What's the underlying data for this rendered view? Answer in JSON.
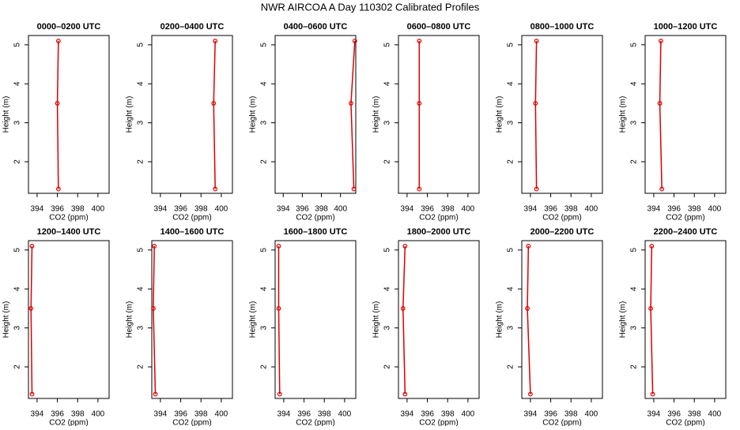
{
  "title": "NWR AIRCOA A  Day 110302  Calibrated Profiles",
  "chart_data": [
    {
      "type": "line",
      "title": "0000–0200 UTC",
      "xlabel": "CO2 (ppm)",
      "ylabel": "Height (m)",
      "color": "#dd0000",
      "x": [
        396.1,
        396.0,
        396.1
      ],
      "values": [
        1.3,
        3.5,
        5.1
      ],
      "xlim": [
        393.15,
        401.1
      ],
      "ylim": [
        1.19,
        5.24
      ],
      "xticks": [
        394,
        396,
        398,
        400
      ],
      "yticks": [
        2,
        3,
        4,
        5
      ]
    },
    {
      "type": "line",
      "title": "0200–0400 UTC",
      "xlabel": "CO2 (ppm)",
      "ylabel": "Height (m)",
      "color": "#dd0000",
      "x": [
        399.4,
        399.25,
        399.4
      ],
      "values": [
        1.3,
        3.5,
        5.1
      ],
      "xlim": [
        393.15,
        401.1
      ],
      "ylim": [
        1.19,
        5.24
      ],
      "xticks": [
        394,
        396,
        398,
        400
      ],
      "yticks": [
        2,
        3,
        4,
        5
      ]
    },
    {
      "type": "line",
      "title": "0400–0600 UTC",
      "xlabel": "CO2 (ppm)",
      "ylabel": "Height (m)",
      "color": "#dd0000",
      "x": [
        401.4,
        401.1,
        401.5
      ],
      "values": [
        1.3,
        3.5,
        5.1
      ],
      "xlim": [
        393.15,
        401.6
      ],
      "ylim": [
        1.19,
        5.24
      ],
      "xticks": [
        394,
        396,
        398,
        400
      ],
      "yticks": [
        2,
        3,
        4,
        5
      ]
    },
    {
      "type": "line",
      "title": "0600–0800 UTC",
      "xlabel": "CO2 (ppm)",
      "ylabel": "Height (m)",
      "color": "#dd0000",
      "x": [
        395.2,
        395.2,
        395.2
      ],
      "values": [
        1.3,
        3.5,
        5.1
      ],
      "xlim": [
        393.15,
        401.1
      ],
      "ylim": [
        1.19,
        5.24
      ],
      "xticks": [
        394,
        396,
        398,
        400
      ],
      "yticks": [
        2,
        3,
        4,
        5
      ]
    },
    {
      "type": "line",
      "title": "0800–1000 UTC",
      "xlabel": "CO2 (ppm)",
      "ylabel": "Height (m)",
      "color": "#dd0000",
      "x": [
        394.6,
        394.5,
        394.6
      ],
      "values": [
        1.3,
        3.5,
        5.1
      ],
      "xlim": [
        393.15,
        401.1
      ],
      "ylim": [
        1.19,
        5.24
      ],
      "xticks": [
        394,
        396,
        398,
        400
      ],
      "yticks": [
        2,
        3,
        4,
        5
      ]
    },
    {
      "type": "line",
      "title": "1000–1200 UTC",
      "xlabel": "CO2 (ppm)",
      "ylabel": "Height (m)",
      "color": "#dd0000",
      "x": [
        394.8,
        394.6,
        394.7
      ],
      "values": [
        1.3,
        3.5,
        5.1
      ],
      "xlim": [
        393.15,
        401.1
      ],
      "ylim": [
        1.19,
        5.24
      ],
      "xticks": [
        394,
        396,
        398,
        400
      ],
      "yticks": [
        2,
        3,
        4,
        5
      ]
    },
    {
      "type": "line",
      "title": "1200–1400 UTC",
      "xlabel": "CO2 (ppm)",
      "ylabel": "Height (m)",
      "color": "#dd0000",
      "x": [
        393.5,
        393.4,
        393.5
      ],
      "values": [
        1.3,
        3.5,
        5.1
      ],
      "xlim": [
        393.15,
        401.1
      ],
      "ylim": [
        1.19,
        5.24
      ],
      "xticks": [
        394,
        396,
        398,
        400
      ],
      "yticks": [
        2,
        3,
        4,
        5
      ]
    },
    {
      "type": "line",
      "title": "1400–1600 UTC",
      "xlabel": "CO2 (ppm)",
      "ylabel": "Height (m)",
      "color": "#dd0000",
      "x": [
        393.5,
        393.3,
        393.4
      ],
      "values": [
        1.3,
        3.5,
        5.1
      ],
      "xlim": [
        393.15,
        401.1
      ],
      "ylim": [
        1.19,
        5.24
      ],
      "xticks": [
        394,
        396,
        398,
        400
      ],
      "yticks": [
        2,
        3,
        4,
        5
      ]
    },
    {
      "type": "line",
      "title": "1600–1800 UTC",
      "xlabel": "CO2 (ppm)",
      "ylabel": "Height (m)",
      "color": "#dd0000",
      "x": [
        393.6,
        393.5,
        393.5
      ],
      "values": [
        1.3,
        3.5,
        5.1
      ],
      "xlim": [
        393.15,
        401.1
      ],
      "ylim": [
        1.19,
        5.24
      ],
      "xticks": [
        394,
        396,
        398,
        400
      ],
      "yticks": [
        2,
        3,
        4,
        5
      ]
    },
    {
      "type": "line",
      "title": "1800–2000 UTC",
      "xlabel": "CO2 (ppm)",
      "ylabel": "Height (m)",
      "color": "#dd0000",
      "x": [
        393.8,
        393.6,
        393.8
      ],
      "values": [
        1.3,
        3.5,
        5.1
      ],
      "xlim": [
        393.15,
        401.1
      ],
      "ylim": [
        1.19,
        5.24
      ],
      "xticks": [
        394,
        396,
        398,
        400
      ],
      "yticks": [
        2,
        3,
        4,
        5
      ]
    },
    {
      "type": "line",
      "title": "2000–2200 UTC",
      "xlabel": "CO2 (ppm)",
      "ylabel": "Height (m)",
      "color": "#dd0000",
      "x": [
        394.0,
        393.7,
        393.8
      ],
      "values": [
        1.3,
        3.5,
        5.1
      ],
      "xlim": [
        393.15,
        401.1
      ],
      "ylim": [
        1.19,
        5.24
      ],
      "xticks": [
        394,
        396,
        398,
        400
      ],
      "yticks": [
        2,
        3,
        4,
        5
      ]
    },
    {
      "type": "line",
      "title": "2200–2400 UTC",
      "xlabel": "CO2 (ppm)",
      "ylabel": "Height (m)",
      "color": "#dd0000",
      "x": [
        393.9,
        393.7,
        393.8
      ],
      "values": [
        1.3,
        3.5,
        5.1
      ],
      "xlim": [
        393.15,
        401.1
      ],
      "ylim": [
        1.19,
        5.24
      ],
      "xticks": [
        394,
        396,
        398,
        400
      ],
      "yticks": [
        2,
        3,
        4,
        5
      ]
    }
  ]
}
